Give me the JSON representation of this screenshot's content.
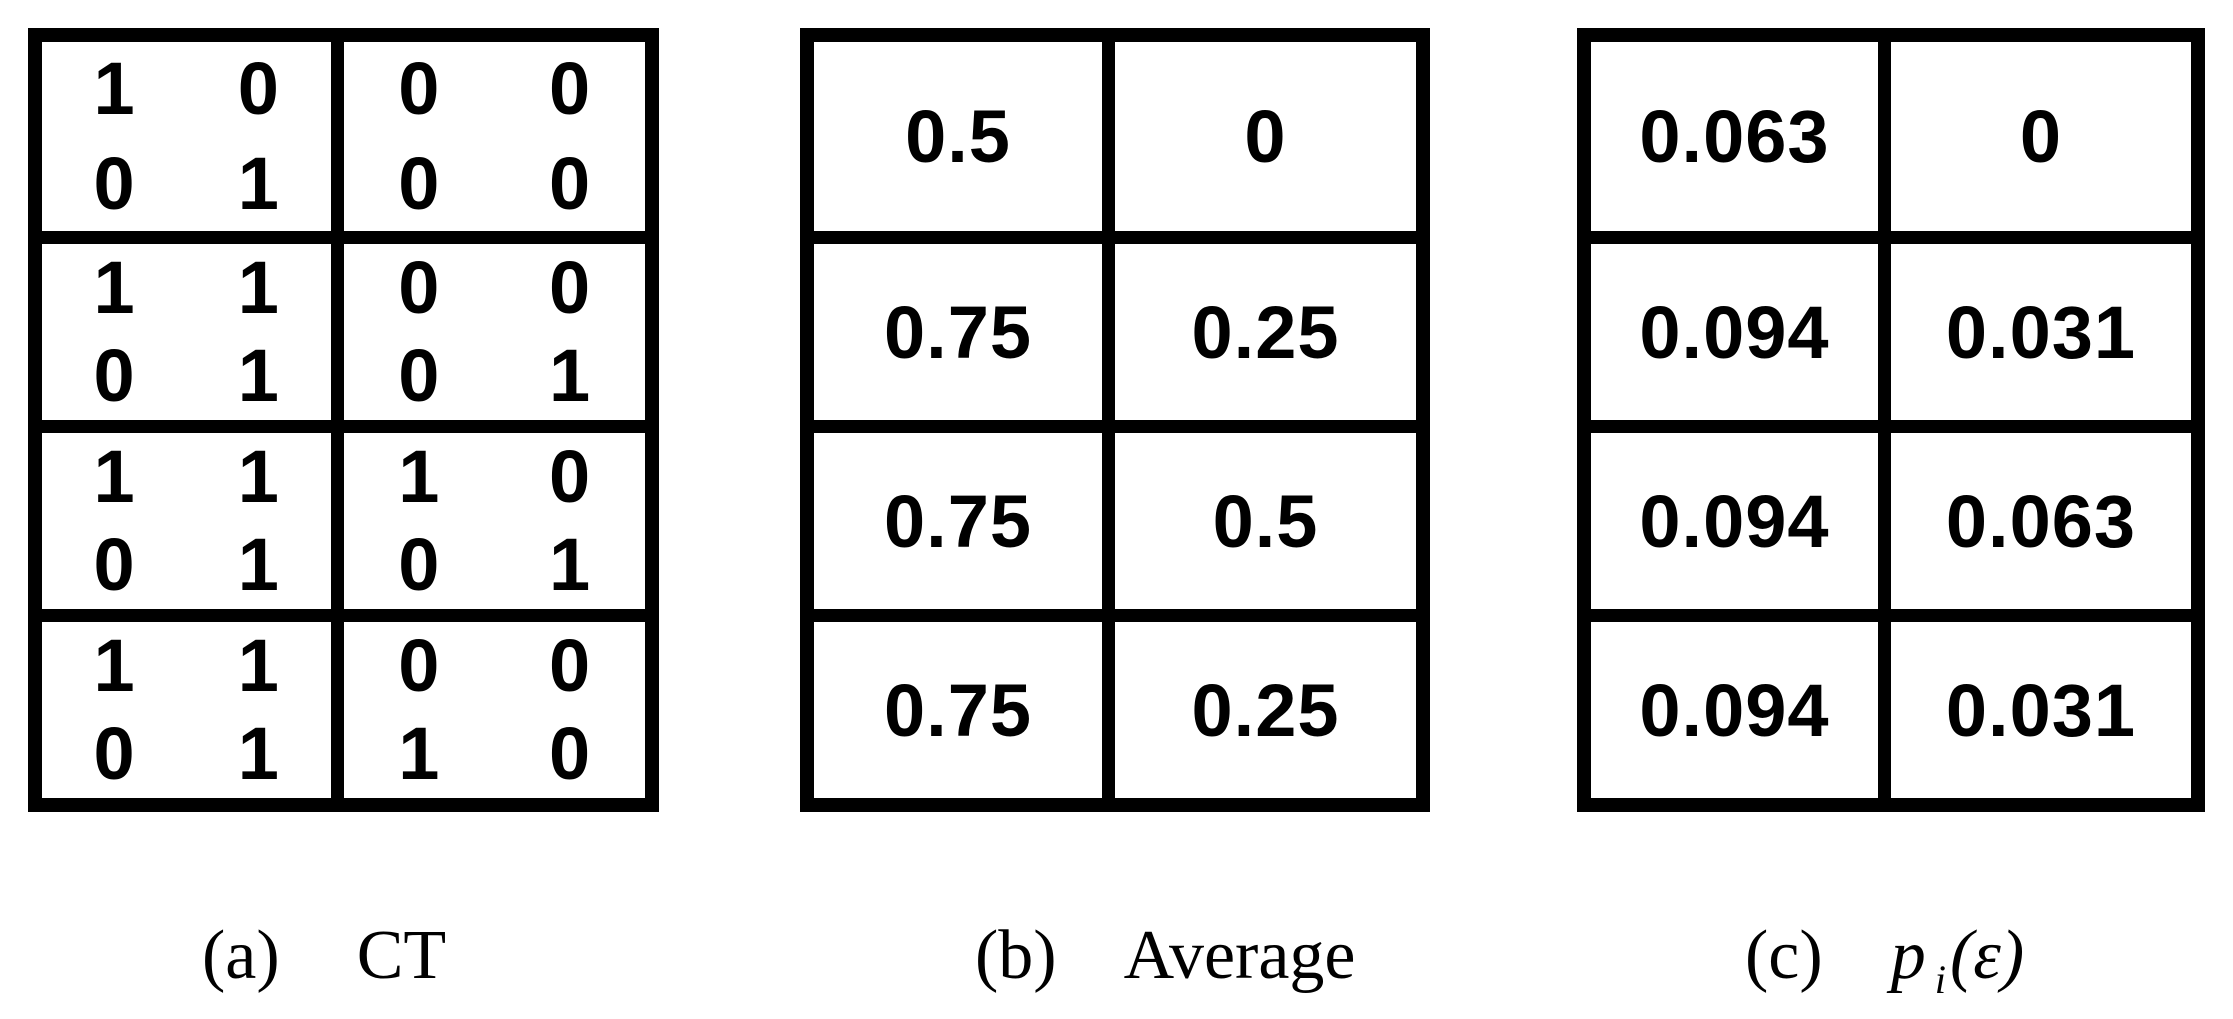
{
  "colors": {
    "background": "#ffffff",
    "border": "#000000",
    "text": "#000000"
  },
  "tables": {
    "a": {
      "matrices": [
        [
          [
            [
              "1",
              "0"
            ],
            [
              "0",
              "1"
            ]
          ],
          [
            [
              "0",
              "0"
            ],
            [
              "0",
              "0"
            ]
          ]
        ],
        [
          [
            [
              "1",
              "1"
            ],
            [
              "0",
              "1"
            ]
          ],
          [
            [
              "0",
              "0"
            ],
            [
              "0",
              "1"
            ]
          ]
        ],
        [
          [
            [
              "1",
              "1"
            ],
            [
              "0",
              "1"
            ]
          ],
          [
            [
              "1",
              "0"
            ],
            [
              "0",
              "1"
            ]
          ]
        ],
        [
          [
            [
              "1",
              "1"
            ],
            [
              "0",
              "1"
            ]
          ],
          [
            [
              "0",
              "0"
            ],
            [
              "1",
              "0"
            ]
          ]
        ]
      ]
    },
    "b": {
      "values": [
        [
          "0.5",
          "0"
        ],
        [
          "0.75",
          "0.25"
        ],
        [
          "0.75",
          "0.5"
        ],
        [
          "0.75",
          "0.25"
        ]
      ]
    },
    "c": {
      "values": [
        [
          "0.063",
          "0"
        ],
        [
          "0.094",
          "0.031"
        ],
        [
          "0.094",
          "0.063"
        ],
        [
          "0.094",
          "0.031"
        ]
      ]
    }
  },
  "captions": {
    "a": {
      "label": "(a)",
      "title": "CT"
    },
    "b": {
      "label": "(b)",
      "title": "Average"
    },
    "c": {
      "label": "(c)",
      "var": "p",
      "sub": "i",
      "arg": "(ε)"
    }
  }
}
